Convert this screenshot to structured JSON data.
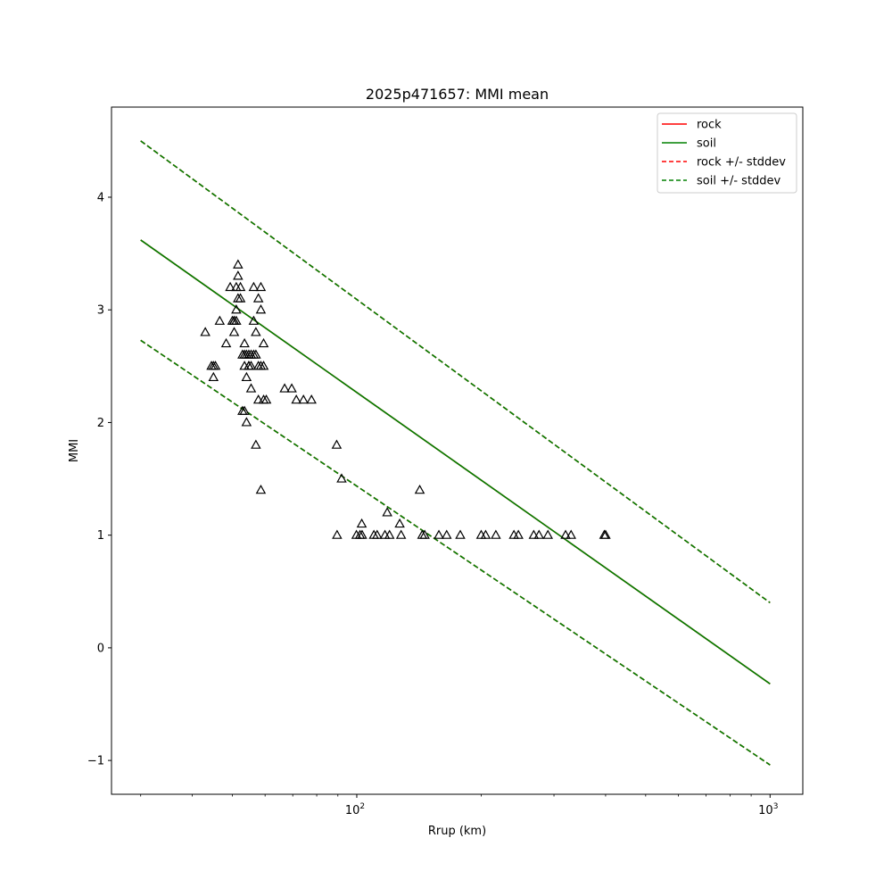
{
  "chart_data": {
    "type": "scatter",
    "title": "2025p471657: MMI mean",
    "xlabel": "Rrup (km)",
    "ylabel": "MMI",
    "xscale": "log",
    "xlim": [
      25.5,
      1200
    ],
    "ylim": [
      -1.3,
      4.8
    ],
    "xticks": [
      100,
      1000
    ],
    "xtick_labels": [
      {
        "base": "10",
        "exp": "2"
      },
      {
        "base": "10",
        "exp": "3"
      }
    ],
    "yticks": [
      -1,
      0,
      1,
      2,
      3,
      4
    ],
    "ytick_labels": [
      "−1",
      "0",
      "1",
      "2",
      "3",
      "4"
    ],
    "grid": false,
    "legend_position": "top-right",
    "lines": [
      {
        "name": "rock",
        "style": "solid",
        "color": "#ff0000",
        "x": [
          30,
          1000
        ],
        "y": [
          3.62,
          -0.32
        ]
      },
      {
        "name": "soil",
        "style": "solid",
        "color": "#008000",
        "x": [
          30,
          1000
        ],
        "y": [
          3.62,
          -0.32
        ]
      },
      {
        "name": "rock +/- stddev",
        "style": "dashed",
        "color": "#ff0000",
        "x": [
          30,
          1000
        ],
        "y": [
          4.5,
          0.4
        ]
      },
      {
        "name": "rock +/- stddev",
        "style": "dashed",
        "color": "#ff0000",
        "x": [
          30,
          1000
        ],
        "y": [
          2.73,
          -1.04
        ]
      },
      {
        "name": "soil +/- stddev",
        "style": "dashed",
        "color": "#008000",
        "x": [
          30,
          1000
        ],
        "y": [
          4.5,
          0.4
        ]
      },
      {
        "name": "soil +/- stddev",
        "style": "dashed",
        "color": "#008000",
        "x": [
          30,
          1000
        ],
        "y": [
          2.73,
          -1.04
        ]
      }
    ],
    "legend": [
      {
        "label": "rock",
        "style": "solid",
        "color": "#ff0000"
      },
      {
        "label": "soil",
        "style": "solid",
        "color": "#008000"
      },
      {
        "label": "rock +/- stddev",
        "style": "dashed",
        "color": "#ff0000"
      },
      {
        "label": "soil +/- stddev",
        "style": "dashed",
        "color": "#008000"
      }
    ],
    "observations": {
      "marker": "triangle",
      "x": [
        51.6,
        51.6,
        51.1,
        50.5,
        50.0,
        50.5,
        51.1,
        51.6,
        52.3,
        53.5,
        53.5,
        54.1,
        54.8,
        54.8,
        55.5,
        56.3,
        56.3,
        57.0,
        57.8,
        58.6,
        58.6,
        59.5,
        59.5,
        58.6,
        57.8,
        57.0,
        55.5,
        54.8,
        54.1,
        53.5,
        52.9,
        52.3,
        51.1,
        50.5,
        49.4,
        48.3,
        46.6,
        45.5,
        45.0,
        45.0,
        44.5,
        43.0,
        55.5,
        57.0,
        58.6,
        59.5,
        60.4,
        53.5,
        52.9,
        54.1,
        56.3,
        57.8,
        66.9,
        69.6,
        71.4,
        74.3,
        77.7,
        89.4,
        91.9,
        89.6,
        99.8,
        101.8,
        102.8,
        103.0,
        110.0,
        112.0,
        117.0,
        118.5,
        120.0,
        127.0,
        128.0,
        142.0,
        144.0,
        146.0,
        158.0,
        165.0,
        178.0,
        200.0,
        205.0,
        217.0,
        240.0,
        246.0,
        268.0,
        276.0,
        290.0,
        320.0,
        330.0,
        397.0,
        400.0
      ],
      "y": [
        3.4,
        3.3,
        3.2,
        2.9,
        2.9,
        2.9,
        2.9,
        3.1,
        3.1,
        2.7,
        2.6,
        2.6,
        2.6,
        2.5,
        2.5,
        3.2,
        2.9,
        2.8,
        3.1,
        3.0,
        3.2,
        2.7,
        2.5,
        2.5,
        2.5,
        2.6,
        2.6,
        2.5,
        2.4,
        2.5,
        2.6,
        3.2,
        3.0,
        2.8,
        3.2,
        2.7,
        2.9,
        2.5,
        2.5,
        2.4,
        2.5,
        2.8,
        2.3,
        1.8,
        1.4,
        2.2,
        2.2,
        2.1,
        2.1,
        2.0,
        2.6,
        2.2,
        2.3,
        2.3,
        2.2,
        2.2,
        2.2,
        1.8,
        1.5,
        1.0,
        1.0,
        1.0,
        1.1,
        1.0,
        1.0,
        1.0,
        1.0,
        1.2,
        1.0,
        1.1,
        1.0,
        1.4,
        1.0,
        1.0,
        1.0,
        1.0,
        1.0,
        1.0,
        1.0,
        1.0,
        1.0,
        1.0,
        1.0,
        1.0,
        1.0,
        1.0,
        1.0,
        1.0,
        1.0
      ]
    }
  }
}
